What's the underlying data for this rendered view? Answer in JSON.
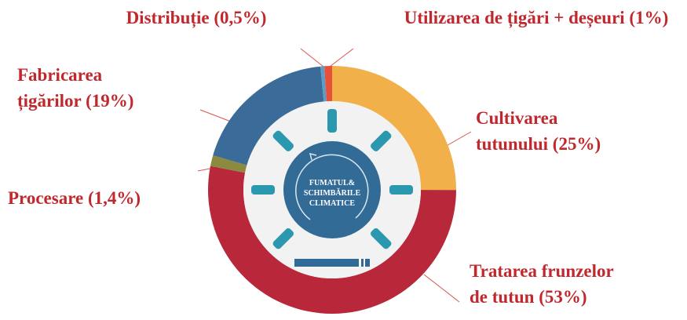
{
  "chart_data": {
    "type": "donut",
    "labels": [
      [
        "Cultivarea",
        "tutunului (25%)"
      ],
      [
        "Tratarea frunzelor",
        "de tutun (53%)"
      ],
      [
        "Procesare (1,4%)"
      ],
      [
        "Fabricarea",
        "țigărilor (19%)"
      ],
      [
        "Distribuție (0,5%)"
      ],
      [
        "Utilizarea de țigări + deșeuri (1%)"
      ]
    ],
    "values": [
      25,
      53,
      1.4,
      19,
      0.5,
      1
    ],
    "colors": [
      "#f2b04a",
      "#b8283a",
      "#8b8a3e",
      "#3b6c99",
      "#5d9cc4",
      "#e9503c"
    ],
    "center_text": [
      "FUMATUL&",
      "SCHIMBĂRILE",
      "CLIMATICE"
    ]
  }
}
